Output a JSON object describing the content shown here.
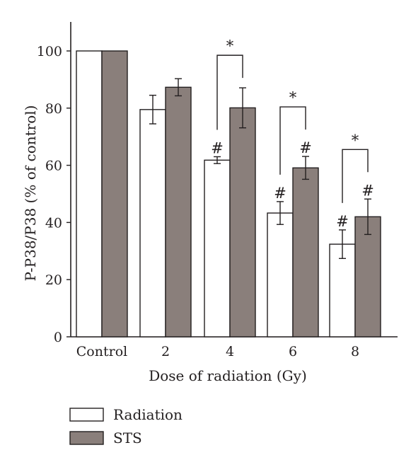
{
  "chart_data": {
    "type": "bar",
    "categories": [
      "Control",
      "2",
      "4",
      "6",
      "8"
    ],
    "series": [
      {
        "name": "Radiation",
        "values": [
          100,
          79.5,
          61.8,
          43.3,
          32.4
        ],
        "error": [
          0,
          5.0,
          1.2,
          4.0,
          5.0
        ],
        "markers": [
          "",
          "",
          "#",
          "#",
          "#"
        ]
      },
      {
        "name": "STS",
        "values": [
          100,
          87.3,
          80.1,
          59.1,
          42.0
        ],
        "error": [
          0,
          3.0,
          7.0,
          4.0,
          6.2
        ],
        "markers": [
          "",
          "",
          "",
          "#",
          "#"
        ]
      }
    ],
    "significance": [
      {
        "category": "4",
        "label": "*"
      },
      {
        "category": "6",
        "label": "*"
      },
      {
        "category": "8",
        "label": "*"
      }
    ],
    "xlabel": "Dose of radiation (Gy)",
    "ylabel": "P-P38/P38 (% of control)",
    "ylim": [
      0,
      110
    ],
    "yticks": [
      0,
      20,
      40,
      60,
      80,
      100
    ],
    "grid": false,
    "legend_position": "bottom-left",
    "colors": {
      "Radiation": "#ffffff",
      "STS": "#8a7f7b",
      "stroke": "#231f20"
    }
  }
}
